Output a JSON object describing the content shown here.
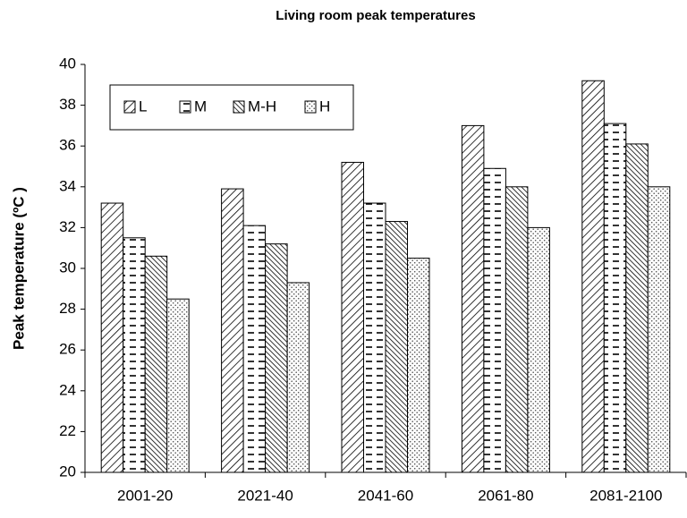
{
  "chart_data": {
    "type": "bar",
    "title": "Living room peak temperatures",
    "y_label": "Peak temperature   (ºC )",
    "categories": [
      "2001-20",
      "2021-40",
      "2041-60",
      "2061-80",
      "2081-2100"
    ],
    "series": [
      {
        "name": "L",
        "pattern": "diagonal",
        "values": [
          33.2,
          33.9,
          35.2,
          37.0,
          39.2
        ]
      },
      {
        "name": "M",
        "pattern": "dashes",
        "values": [
          31.5,
          32.1,
          33.2,
          34.9,
          37.1
        ]
      },
      {
        "name": "M-H",
        "pattern": "dense-diagonal",
        "values": [
          30.6,
          31.2,
          32.3,
          34.0,
          36.1
        ]
      },
      {
        "name": "H",
        "pattern": "dots",
        "values": [
          28.5,
          29.3,
          30.5,
          32.0,
          34.0
        ]
      }
    ],
    "ylim": [
      20,
      40
    ],
    "yticks": [
      20,
      22,
      24,
      26,
      28,
      30,
      32,
      34,
      36,
      38,
      40
    ],
    "grid": false,
    "legend": "top-left"
  }
}
